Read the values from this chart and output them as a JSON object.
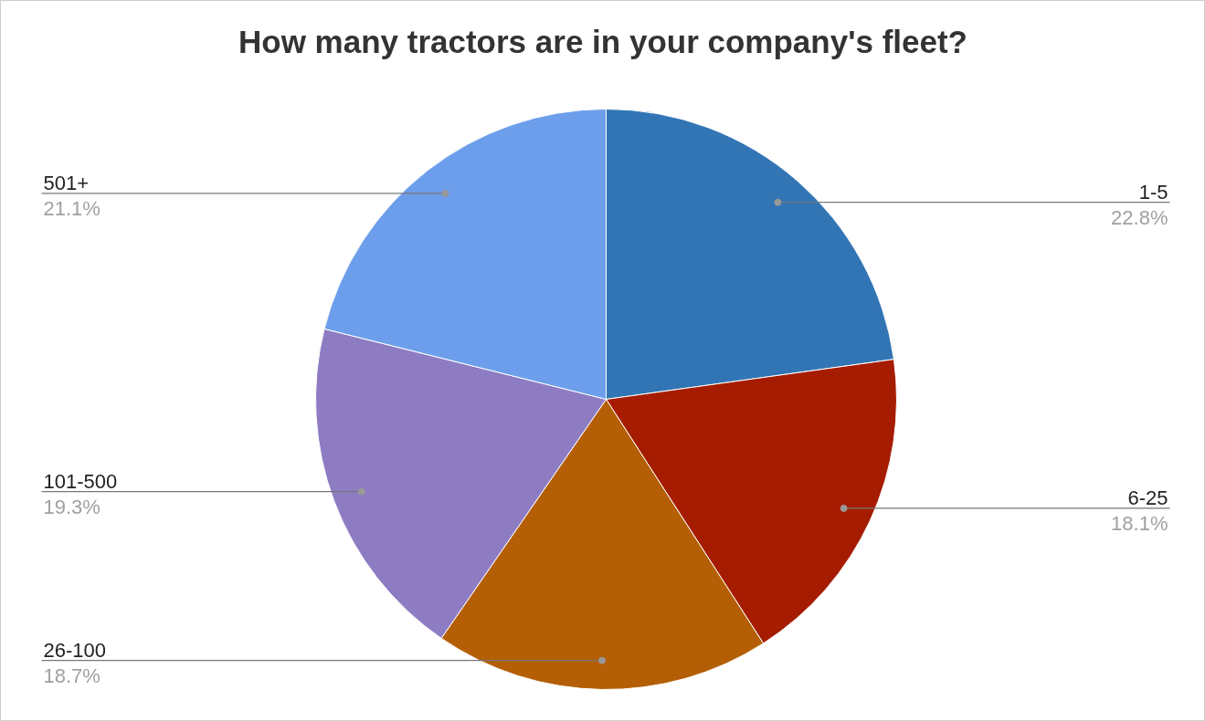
{
  "chart_data": {
    "type": "pie",
    "title": "How many tractors are in your company's fleet?",
    "categories": [
      "1-5",
      "6-25",
      "26-100",
      "101-500",
      "501+"
    ],
    "values": [
      22.8,
      18.1,
      18.7,
      19.3,
      21.1
    ],
    "colors": [
      "#3275b5",
      "#a61c00",
      "#b45f06",
      "#8e7cc3",
      "#6d9eeb"
    ],
    "value_labels": [
      "22.8%",
      "18.1%",
      "18.7%",
      "19.3%",
      "21.1%"
    ]
  }
}
